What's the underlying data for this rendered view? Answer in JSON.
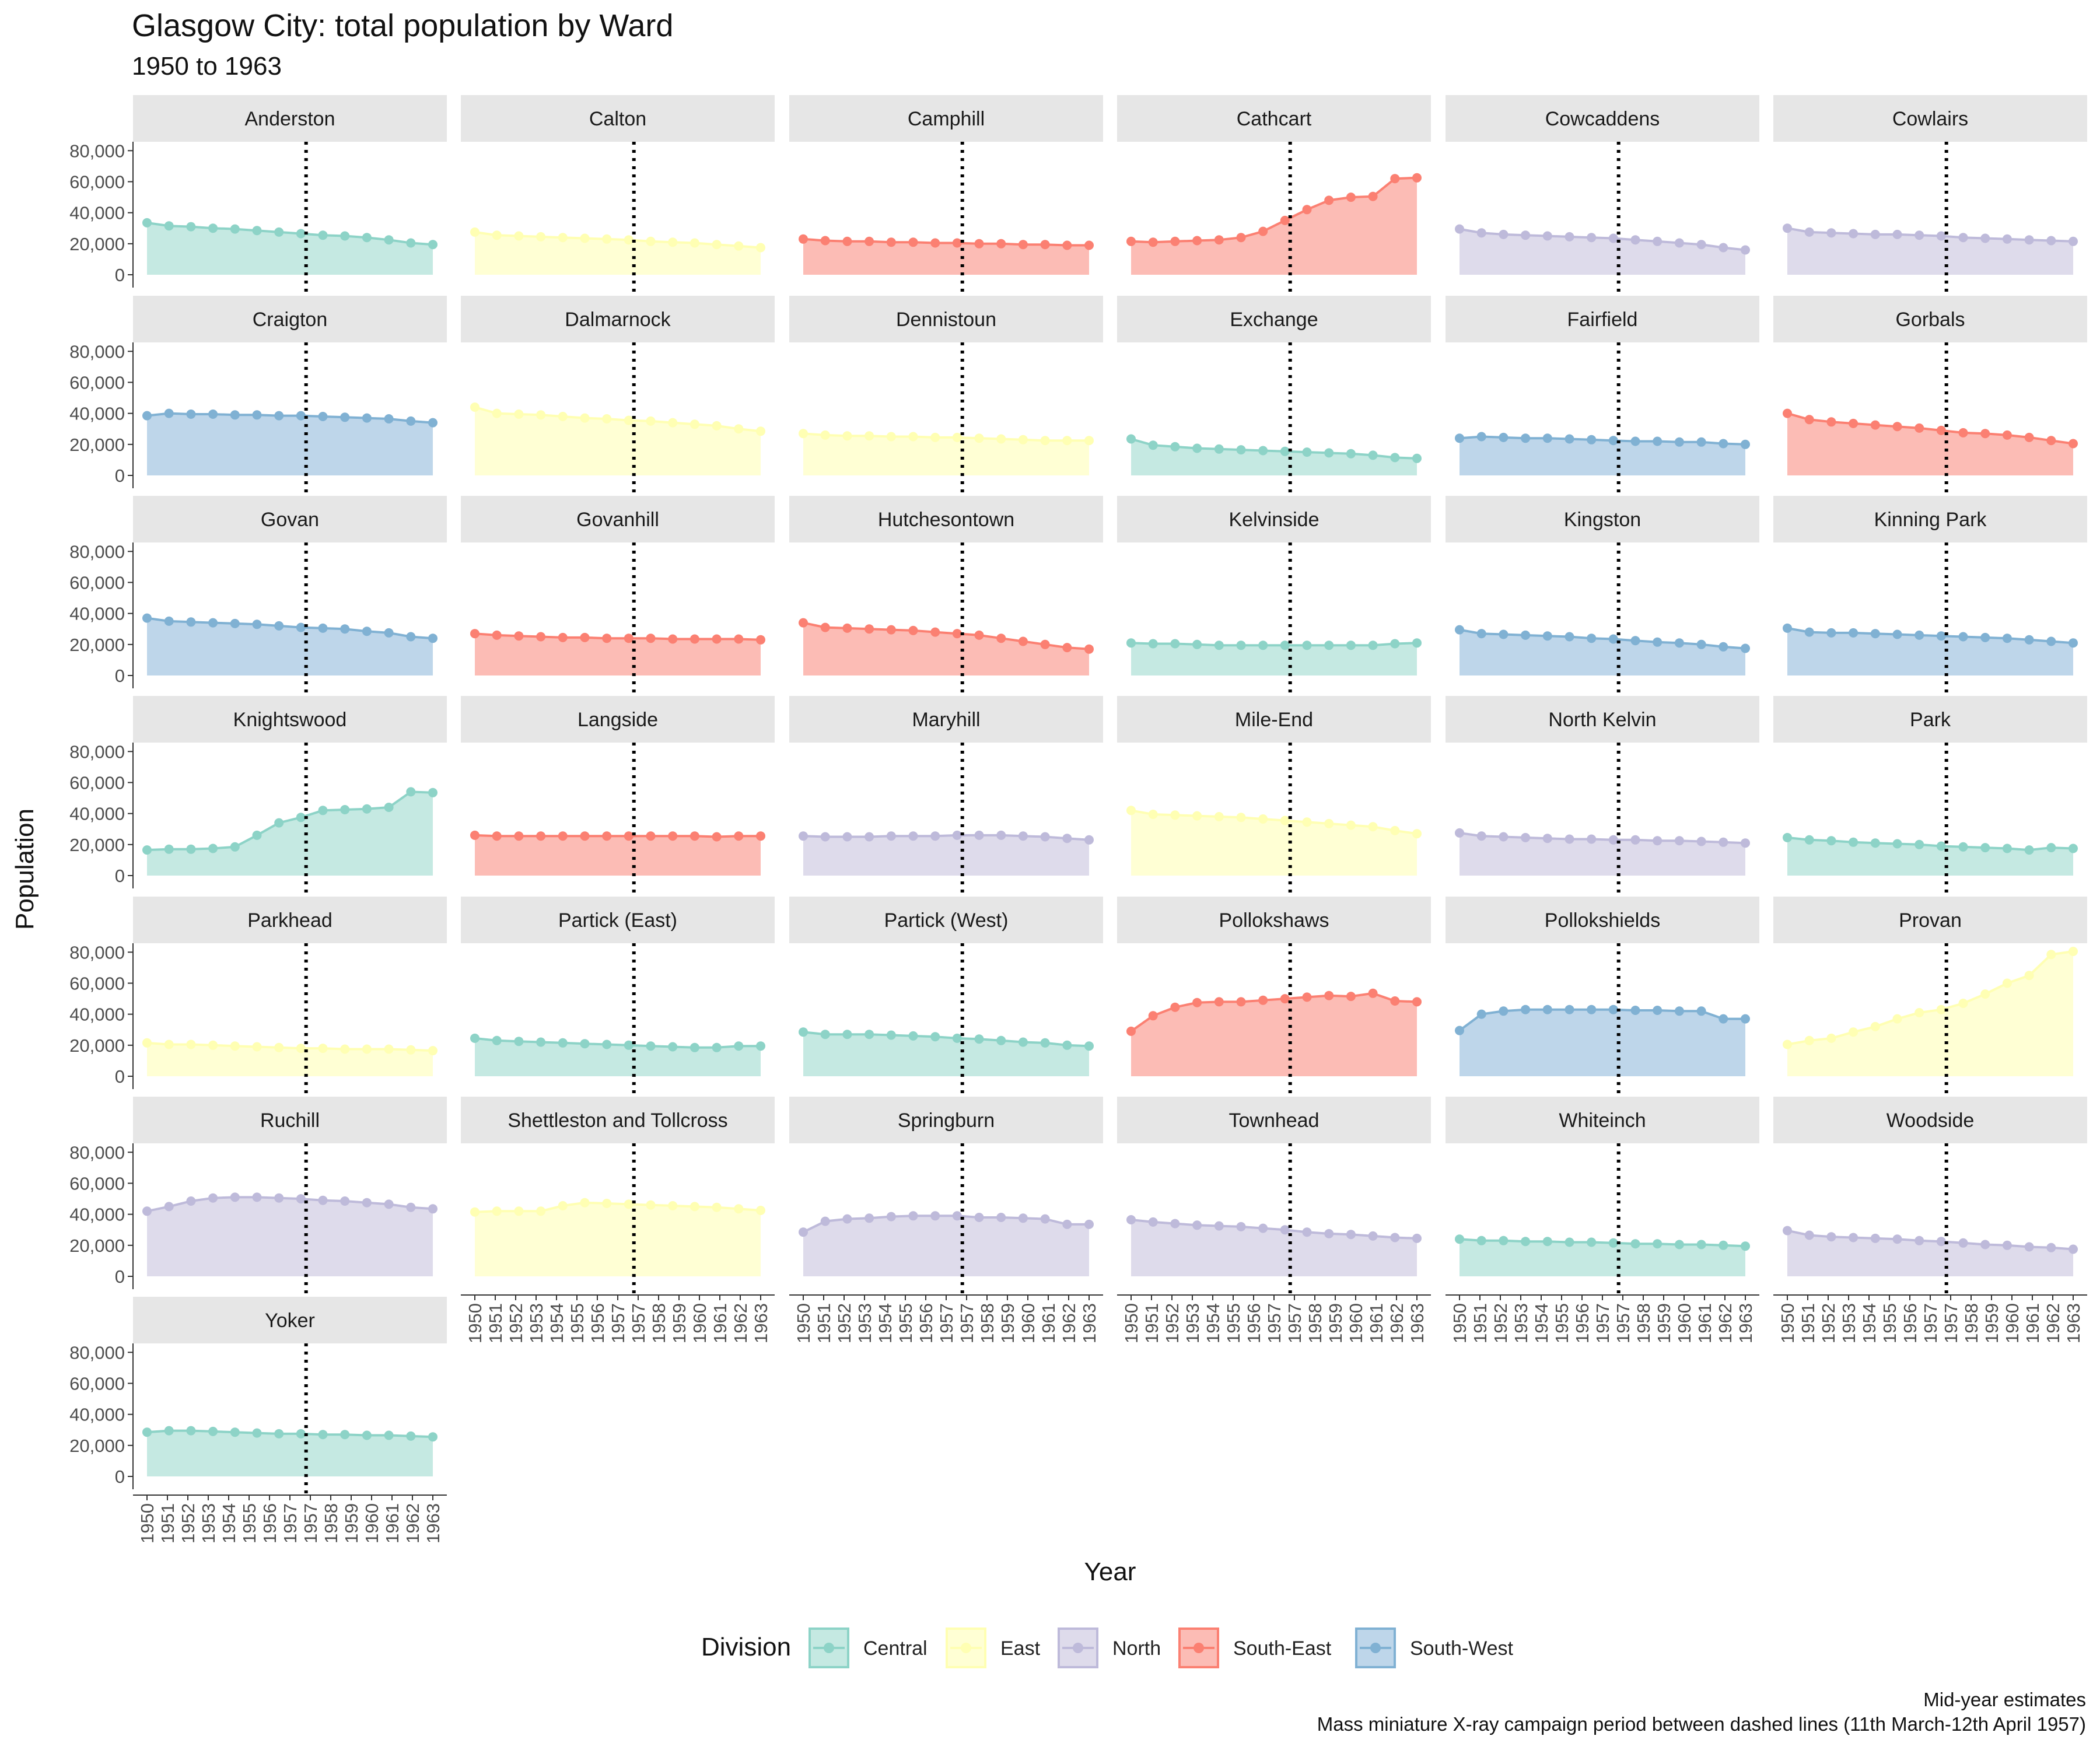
{
  "chart_data": {
    "type": "area",
    "title": "Glasgow City: total population by Ward",
    "subtitle": "1950 to 1963",
    "xlabel": "Year",
    "ylabel": "Population",
    "x": [
      1950,
      1951,
      1952,
      1953,
      1954,
      1955,
      1956,
      1957,
      1958,
      1959,
      1960,
      1961,
      1962,
      1963
    ],
    "x_display": [
      "1950",
      "1951",
      "1952",
      "1953",
      "1954",
      "1955",
      "1956",
      "1957",
      "1957",
      "1958",
      "1959",
      "1960",
      "1961",
      "1962",
      "1963"
    ],
    "x_display_values": [
      1950,
      1951,
      1952,
      1953,
      1954,
      1955,
      1956,
      1957,
      1957,
      1958,
      1959,
      1960,
      1961,
      1962,
      1963
    ],
    "x_display_note": "",
    "y_ticks": [
      0,
      20000,
      40000,
      60000,
      80000
    ],
    "y_tick_labels": [
      "0",
      "20,000",
      "40,000",
      "60,000",
      "80,000"
    ],
    "ylim": [
      0,
      85000
    ],
    "grid": false,
    "facet_columns": 6,
    "campaign_period": [
      1957.19,
      1957.28
    ],
    "legend": {
      "title": "Division",
      "position": "bottom",
      "entries": [
        {
          "name": "Central",
          "fill": "#c5e9e2",
          "line": "#8dd3c7"
        },
        {
          "name": "East",
          "fill": "#ffffd4",
          "line": "#ffffb3"
        },
        {
          "name": "North",
          "fill": "#dedbeb",
          "line": "#bebada"
        },
        {
          "name": "South-East",
          "fill": "#fcbcb5",
          "line": "#fb8072"
        },
        {
          "name": "South-West",
          "fill": "#bed6ea",
          "line": "#80b1d3"
        }
      ]
    },
    "caption": [
      "Mid-year estimates",
      "Mass miniature X-ray campaign period between dashed lines (11th March-12th April 1957)"
    ],
    "series": [
      {
        "name": "Anderston",
        "division": "Central",
        "values": [
          33500,
          31500,
          31000,
          30000,
          29500,
          28500,
          27500,
          26500,
          25500,
          25000,
          24000,
          22500,
          20500,
          19500
        ]
      },
      {
        "name": "Calton",
        "division": "East",
        "values": [
          27500,
          25500,
          25000,
          24500,
          24000,
          23500,
          23000,
          22500,
          21500,
          21000,
          20500,
          19500,
          18500,
          17500
        ]
      },
      {
        "name": "Camphill",
        "division": "South-East",
        "values": [
          23000,
          22000,
          21500,
          21500,
          21000,
          21000,
          20500,
          20500,
          20000,
          20000,
          19500,
          19500,
          19000,
          19000
        ]
      },
      {
        "name": "Cathcart",
        "division": "South-East",
        "values": [
          21500,
          21000,
          21500,
          22000,
          22500,
          24000,
          28000,
          35000,
          42000,
          48000,
          50000,
          50500,
          62000,
          62500
        ]
      },
      {
        "name": "Cowcaddens",
        "division": "North",
        "values": [
          29500,
          27000,
          26000,
          25500,
          25000,
          24500,
          24000,
          23500,
          22500,
          21500,
          20500,
          19500,
          17500,
          16000
        ]
      },
      {
        "name": "Cowlairs",
        "division": "North",
        "values": [
          30000,
          27500,
          27000,
          26500,
          26000,
          26000,
          25500,
          25000,
          24000,
          23500,
          23000,
          22500,
          22000,
          21500
        ]
      },
      {
        "name": "Craigton",
        "division": "South-West",
        "values": [
          38500,
          40000,
          39500,
          39500,
          39000,
          39000,
          38500,
          38500,
          38000,
          37500,
          37000,
          36500,
          35000,
          34000
        ]
      },
      {
        "name": "Dalmarnock",
        "division": "East",
        "values": [
          44000,
          40000,
          39500,
          39000,
          38000,
          37000,
          36500,
          35500,
          35000,
          34000,
          33000,
          32000,
          30000,
          28500
        ]
      },
      {
        "name": "Dennistoun",
        "division": "East",
        "values": [
          27000,
          26000,
          25500,
          25500,
          25000,
          25000,
          24500,
          24500,
          24000,
          23500,
          23000,
          22500,
          22500,
          22500
        ]
      },
      {
        "name": "Exchange",
        "division": "Central",
        "values": [
          23500,
          19500,
          18500,
          17500,
          17000,
          16500,
          16000,
          15500,
          15000,
          14500,
          14000,
          13000,
          11500,
          11000
        ]
      },
      {
        "name": "Fairfield",
        "division": "South-West",
        "values": [
          24000,
          25000,
          24500,
          24000,
          24000,
          23500,
          23000,
          22500,
          22000,
          22000,
          21500,
          21500,
          20500,
          20000
        ]
      },
      {
        "name": "Gorbals",
        "division": "South-East",
        "values": [
          40000,
          36000,
          34500,
          33500,
          32500,
          31500,
          30500,
          29000,
          27500,
          27000,
          26000,
          24500,
          22500,
          20500
        ]
      },
      {
        "name": "Govan",
        "division": "South-West",
        "values": [
          37000,
          35000,
          34500,
          34000,
          33500,
          33000,
          32000,
          31000,
          30500,
          30000,
          28500,
          27500,
          25000,
          24000
        ]
      },
      {
        "name": "Govanhill",
        "division": "South-East",
        "values": [
          27000,
          26000,
          25500,
          25000,
          24500,
          24500,
          24000,
          24000,
          24000,
          23500,
          23500,
          23500,
          23500,
          23000
        ]
      },
      {
        "name": "Hutchesontown",
        "division": "South-East",
        "values": [
          34000,
          31000,
          30500,
          30000,
          29500,
          29000,
          28000,
          27000,
          26000,
          24000,
          22000,
          20000,
          18000,
          17000
        ]
      },
      {
        "name": "Kelvinside",
        "division": "Central",
        "values": [
          21000,
          20500,
          20500,
          20000,
          19500,
          19500,
          19500,
          19500,
          19500,
          19500,
          19500,
          19500,
          20500,
          21000
        ]
      },
      {
        "name": "Kingston",
        "division": "South-West",
        "values": [
          29500,
          27000,
          26500,
          26000,
          25500,
          25000,
          24000,
          23500,
          22500,
          21500,
          21000,
          20000,
          18500,
          17500
        ]
      },
      {
        "name": "Kinning Park",
        "division": "South-West",
        "values": [
          30500,
          28000,
          27500,
          27500,
          27000,
          26500,
          26000,
          25500,
          25000,
          24500,
          24000,
          23000,
          22000,
          21000
        ]
      },
      {
        "name": "Knightswood",
        "division": "Central",
        "values": [
          16500,
          17000,
          17000,
          17500,
          18500,
          26000,
          34000,
          37500,
          42000,
          42500,
          43000,
          44000,
          54000,
          53500
        ]
      },
      {
        "name": "Langside",
        "division": "South-East",
        "values": [
          26000,
          25500,
          25500,
          25500,
          25500,
          25500,
          25500,
          25500,
          25500,
          25500,
          25500,
          25000,
          25500,
          25500
        ]
      },
      {
        "name": "Maryhill",
        "division": "North",
        "values": [
          25500,
          25000,
          25000,
          25000,
          25500,
          25500,
          25500,
          26000,
          26000,
          26000,
          25500,
          25000,
          24000,
          23000
        ]
      },
      {
        "name": "Mile-End",
        "division": "East",
        "values": [
          42000,
          39500,
          39000,
          38500,
          38000,
          37500,
          36500,
          35500,
          34500,
          33500,
          32500,
          31500,
          29000,
          27000
        ]
      },
      {
        "name": "North Kelvin",
        "division": "North",
        "values": [
          27500,
          25500,
          25000,
          24500,
          24000,
          23500,
          23500,
          23000,
          23000,
          22500,
          22500,
          22000,
          21500,
          21000
        ]
      },
      {
        "name": "Park",
        "division": "Central",
        "values": [
          24500,
          23000,
          22500,
          21500,
          21000,
          20500,
          20000,
          19000,
          18500,
          18000,
          17500,
          16500,
          18000,
          17500
        ]
      },
      {
        "name": "Parkhead",
        "division": "East",
        "values": [
          21500,
          20500,
          20500,
          20000,
          19500,
          19000,
          18500,
          18000,
          18000,
          17500,
          17500,
          17500,
          17000,
          16500
        ]
      },
      {
        "name": "Partick (East)",
        "division": "Central",
        "values": [
          24500,
          23000,
          22500,
          22000,
          21500,
          21000,
          20500,
          20000,
          19500,
          19000,
          18500,
          18500,
          19500,
          19500
        ]
      },
      {
        "name": "Partick (West)",
        "division": "Central",
        "values": [
          28500,
          27000,
          27000,
          27000,
          26500,
          26000,
          25500,
          24500,
          24000,
          23000,
          22000,
          21500,
          20000,
          19500
        ]
      },
      {
        "name": "Pollokshaws",
        "division": "South-East",
        "values": [
          29000,
          39000,
          44500,
          47500,
          48000,
          48000,
          49000,
          50000,
          51000,
          52000,
          51500,
          53500,
          48500,
          48000
        ]
      },
      {
        "name": "Pollokshields",
        "division": "South-West",
        "values": [
          29500,
          40000,
          42000,
          43000,
          43000,
          43000,
          43000,
          43000,
          42500,
          42500,
          42000,
          42000,
          37000,
          37000
        ]
      },
      {
        "name": "Provan",
        "division": "East",
        "values": [
          20500,
          23000,
          24500,
          28500,
          32000,
          37000,
          41000,
          43000,
          47000,
          53000,
          60000,
          65000,
          78500,
          80500
        ]
      },
      {
        "name": "Ruchill",
        "division": "North",
        "values": [
          42000,
          45000,
          48500,
          50500,
          51000,
          51000,
          50500,
          50000,
          49000,
          48500,
          47500,
          46500,
          44500,
          43500
        ]
      },
      {
        "name": "Shettleston and Tollcross",
        "division": "East",
        "values": [
          41500,
          42000,
          42000,
          42000,
          45500,
          47500,
          47000,
          46500,
          46000,
          45500,
          45000,
          44500,
          43500,
          42500
        ]
      },
      {
        "name": "Springburn",
        "division": "North",
        "values": [
          28500,
          35500,
          37000,
          37500,
          38500,
          39000,
          39000,
          39000,
          38000,
          38000,
          37500,
          37000,
          33500,
          33500
        ]
      },
      {
        "name": "Townhead",
        "division": "North",
        "values": [
          36500,
          35000,
          34000,
          33000,
          32500,
          32000,
          31000,
          30000,
          28500,
          27500,
          27000,
          26000,
          25000,
          24500
        ]
      },
      {
        "name": "Whiteinch",
        "division": "Central",
        "values": [
          24000,
          23000,
          23000,
          22500,
          22500,
          22000,
          22000,
          21500,
          21000,
          21000,
          20500,
          20500,
          20000,
          19500
        ]
      },
      {
        "name": "Woodside",
        "division": "North",
        "values": [
          29500,
          26500,
          25500,
          25000,
          24500,
          24000,
          23000,
          22500,
          21500,
          20500,
          20000,
          19000,
          18500,
          17500
        ]
      },
      {
        "name": "Yoker",
        "division": "Central",
        "values": [
          28500,
          29500,
          29500,
          29000,
          28500,
          28000,
          27500,
          27500,
          27000,
          27000,
          26500,
          26500,
          26000,
          25500
        ]
      }
    ]
  }
}
